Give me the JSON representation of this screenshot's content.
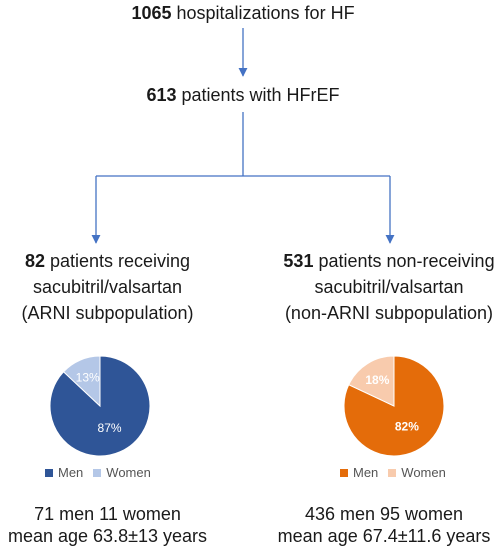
{
  "top": {
    "num": "1065",
    "text": " hospitalizations for HF"
  },
  "mid": {
    "num": "613",
    "text": " patients with HFrEF"
  },
  "left": {
    "line1_num": "82",
    "line1_text": " patients receiving",
    "line2": "sacubitril/valsartan",
    "line3": "(ARNI subpopulation)",
    "stats1": "71 men 11 women",
    "stats2": "mean age 63.8±13 years"
  },
  "right": {
    "line1_num": "531",
    "line1_text": " patients non-receiving",
    "line2": "sacubitril/valsartan",
    "line3": "(non-ARNI subpopulation)",
    "stats1": "436 men 95 women",
    "stats2": "mean age 67.4±11.6 years"
  },
  "chart_data": [
    {
      "type": "pie",
      "categories": [
        "Men",
        "Women"
      ],
      "values": [
        87,
        13
      ],
      "labels": [
        "87%",
        "13%"
      ],
      "colors": [
        "#2f5597",
        "#b4c7e7"
      ],
      "legend": "bottom"
    },
    {
      "type": "pie",
      "categories": [
        "Men",
        "Women"
      ],
      "values": [
        82,
        18
      ],
      "labels": [
        "82%",
        "18%"
      ],
      "colors": [
        "#e46c0a",
        "#f8cbad"
      ],
      "legend": "bottom"
    }
  ],
  "colors": {
    "arrow": "#4472c4"
  }
}
